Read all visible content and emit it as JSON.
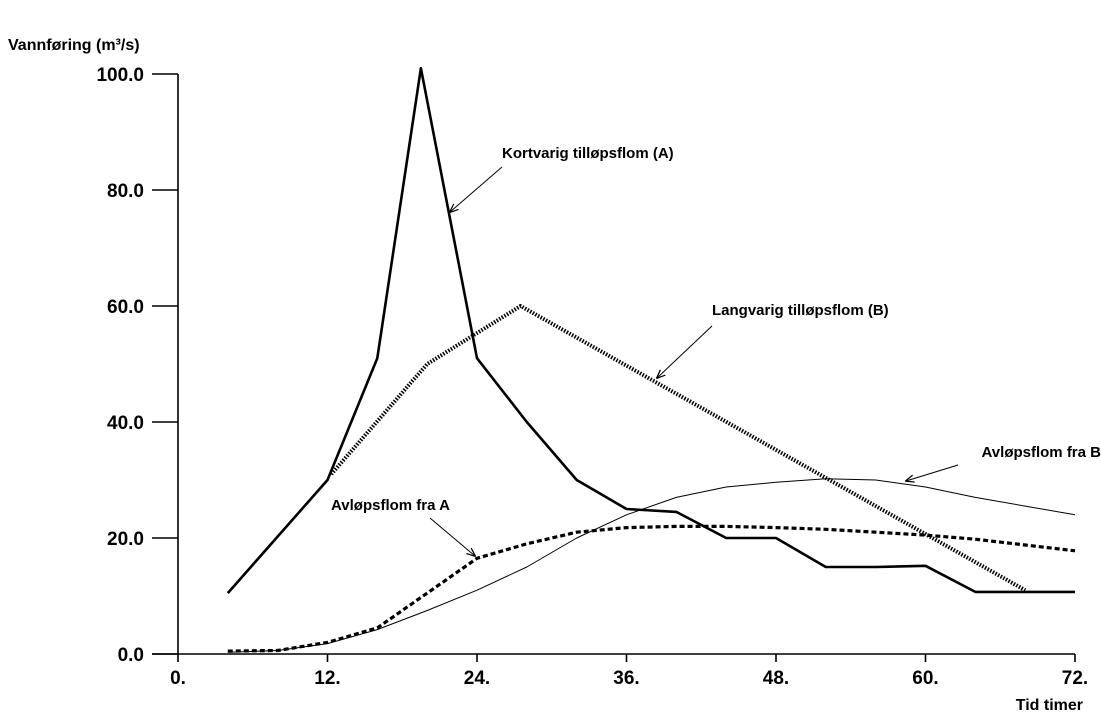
{
  "chart_data": {
    "type": "line",
    "ylabel": "Vannføring (m³/s)",
    "xlabel": "Tid timer",
    "xlim": [
      0,
      72
    ],
    "ylim": [
      0,
      100
    ],
    "x_ticks": [
      "0.",
      "12.",
      "24.",
      "36.",
      "48.",
      "60.",
      "72."
    ],
    "x_tick_values": [
      0,
      12,
      24,
      36,
      48,
      60,
      72
    ],
    "y_ticks": [
      "0.0",
      "20.0",
      "40.0",
      "60.0",
      "80.0",
      "100.0"
    ],
    "y_tick_values": [
      0,
      20,
      40,
      60,
      80,
      100
    ],
    "grid": false,
    "series": [
      {
        "name": "Kortvarig tilløpsflom (A)",
        "style": "solid-thick",
        "color": "#000000",
        "x": [
          4,
          12,
          16,
          19.5,
          24,
          28,
          32,
          36,
          40,
          44,
          48,
          52,
          56,
          60,
          64,
          68,
          72
        ],
        "y": [
          10.5,
          30,
          51,
          101,
          51,
          40,
          30,
          25,
          24.5,
          20,
          20,
          15,
          15,
          15.2,
          10.7,
          10.7,
          10.7
        ]
      },
      {
        "name": "Langvarig tilløpsflom (B)",
        "style": "dotted-thick",
        "color": "#000000",
        "x": [
          12.3,
          20,
          27.5,
          68
        ],
        "y": [
          31,
          50,
          60,
          11
        ]
      },
      {
        "name": "Avløpsflom fra A",
        "style": "dashed",
        "color": "#000000",
        "x": [
          4,
          8,
          12,
          16,
          20,
          24,
          28,
          32,
          36,
          40,
          44,
          48,
          52,
          56,
          60,
          64,
          68,
          72
        ],
        "y": [
          0.5,
          0.6,
          2,
          4.5,
          10.5,
          16.5,
          19,
          21,
          21.8,
          22,
          22,
          21.8,
          21.5,
          21,
          20.5,
          19.8,
          18.8,
          17.8
        ]
      },
      {
        "name": "Avløpsflom fra B",
        "style": "solid-thin",
        "color": "#000000",
        "x": [
          4,
          8,
          12,
          16,
          20,
          24,
          28,
          32,
          36,
          40,
          44,
          48,
          52,
          56,
          60,
          64,
          68,
          72
        ],
        "y": [
          0.3,
          0.6,
          1.8,
          4.2,
          7.5,
          11,
          15,
          20,
          24,
          27,
          28.8,
          29.6,
          30.2,
          30,
          28.8,
          27,
          25.5,
          24
        ]
      }
    ],
    "annotations": [
      {
        "text": "Kortvarig tilløpsflom (A)",
        "series": 0
      },
      {
        "text": "Langvarig tilløpsflom (B)",
        "series": 1
      },
      {
        "text": "Avløpsflom fra A",
        "series": 2
      },
      {
        "text": "Avløpsflom fra B",
        "series": 3
      }
    ]
  }
}
